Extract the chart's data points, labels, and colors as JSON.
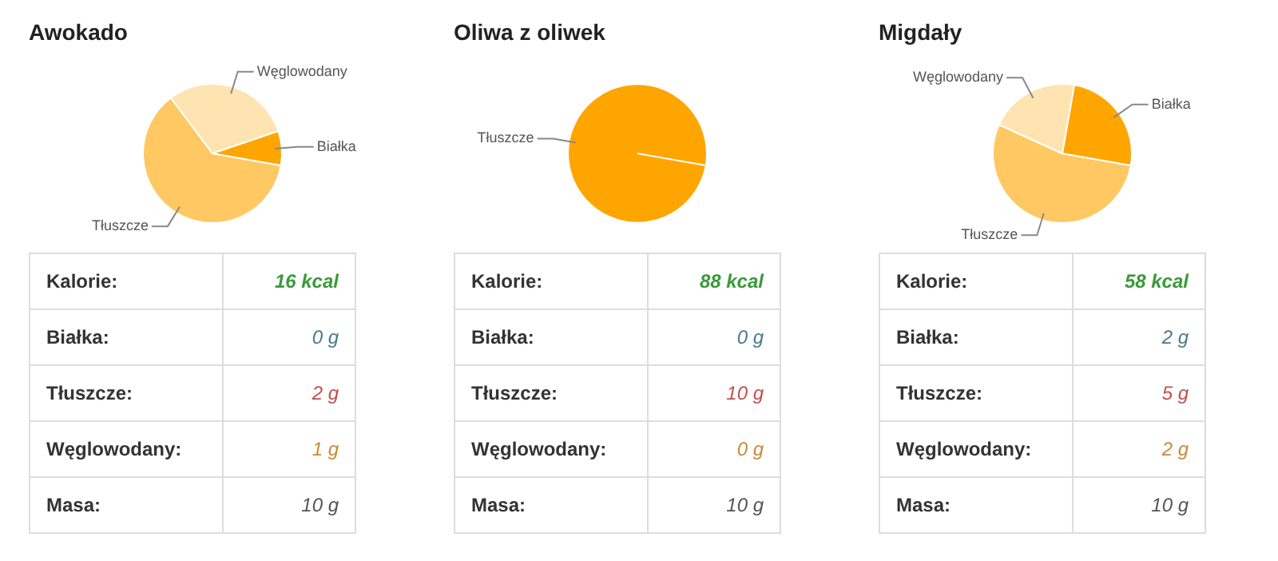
{
  "chart_data": [
    {
      "type": "pie",
      "title": "Awokado",
      "categories": [
        "Tłuszcze",
        "Węglowodany",
        "Białka"
      ],
      "values": [
        62,
        30,
        8
      ],
      "colors": [
        "#ffc862",
        "#ffe3b0",
        "#ffa500"
      ],
      "legend": false
    },
    {
      "type": "other",
      "annotations": [
        "Kalorie:",
        "16 kcal",
        "Białka:",
        "0 g",
        "Tłuszcze:",
        "2 g",
        "Węglowodany:",
        "1 g",
        "Masa:",
        "10 g"
      ]
    },
    {
      "type": "pie",
      "title": "Oliwa z oliwek",
      "categories": [
        "Tłuszcze"
      ],
      "values": [
        100
      ],
      "colors": [
        "#ffa500"
      ],
      "legend": false
    },
    {
      "type": "other",
      "annotations": [
        "Kalorie:",
        "88 kcal",
        "Białka:",
        "0 g",
        "Tłuszcze:",
        "10 g",
        "Węglowodany:",
        "0 g",
        "Masa:",
        "10 g"
      ]
    },
    {
      "type": "pie",
      "title": "Migdały",
      "categories": [
        "Tłuszcze",
        "Węglowodany",
        "Białka"
      ],
      "values": [
        54,
        21,
        25
      ],
      "colors": [
        "#ffc862",
        "#ffe3b0",
        "#ffa500"
      ],
      "legend": false
    },
    {
      "type": "other",
      "annotations": [
        "Kalorie:",
        "58 kcal",
        "Białka:",
        "2 g",
        "Tłuszcze:",
        "5 g",
        "Węglowodany:",
        "2 g",
        "Masa:",
        "10 g"
      ]
    }
  ]
}
